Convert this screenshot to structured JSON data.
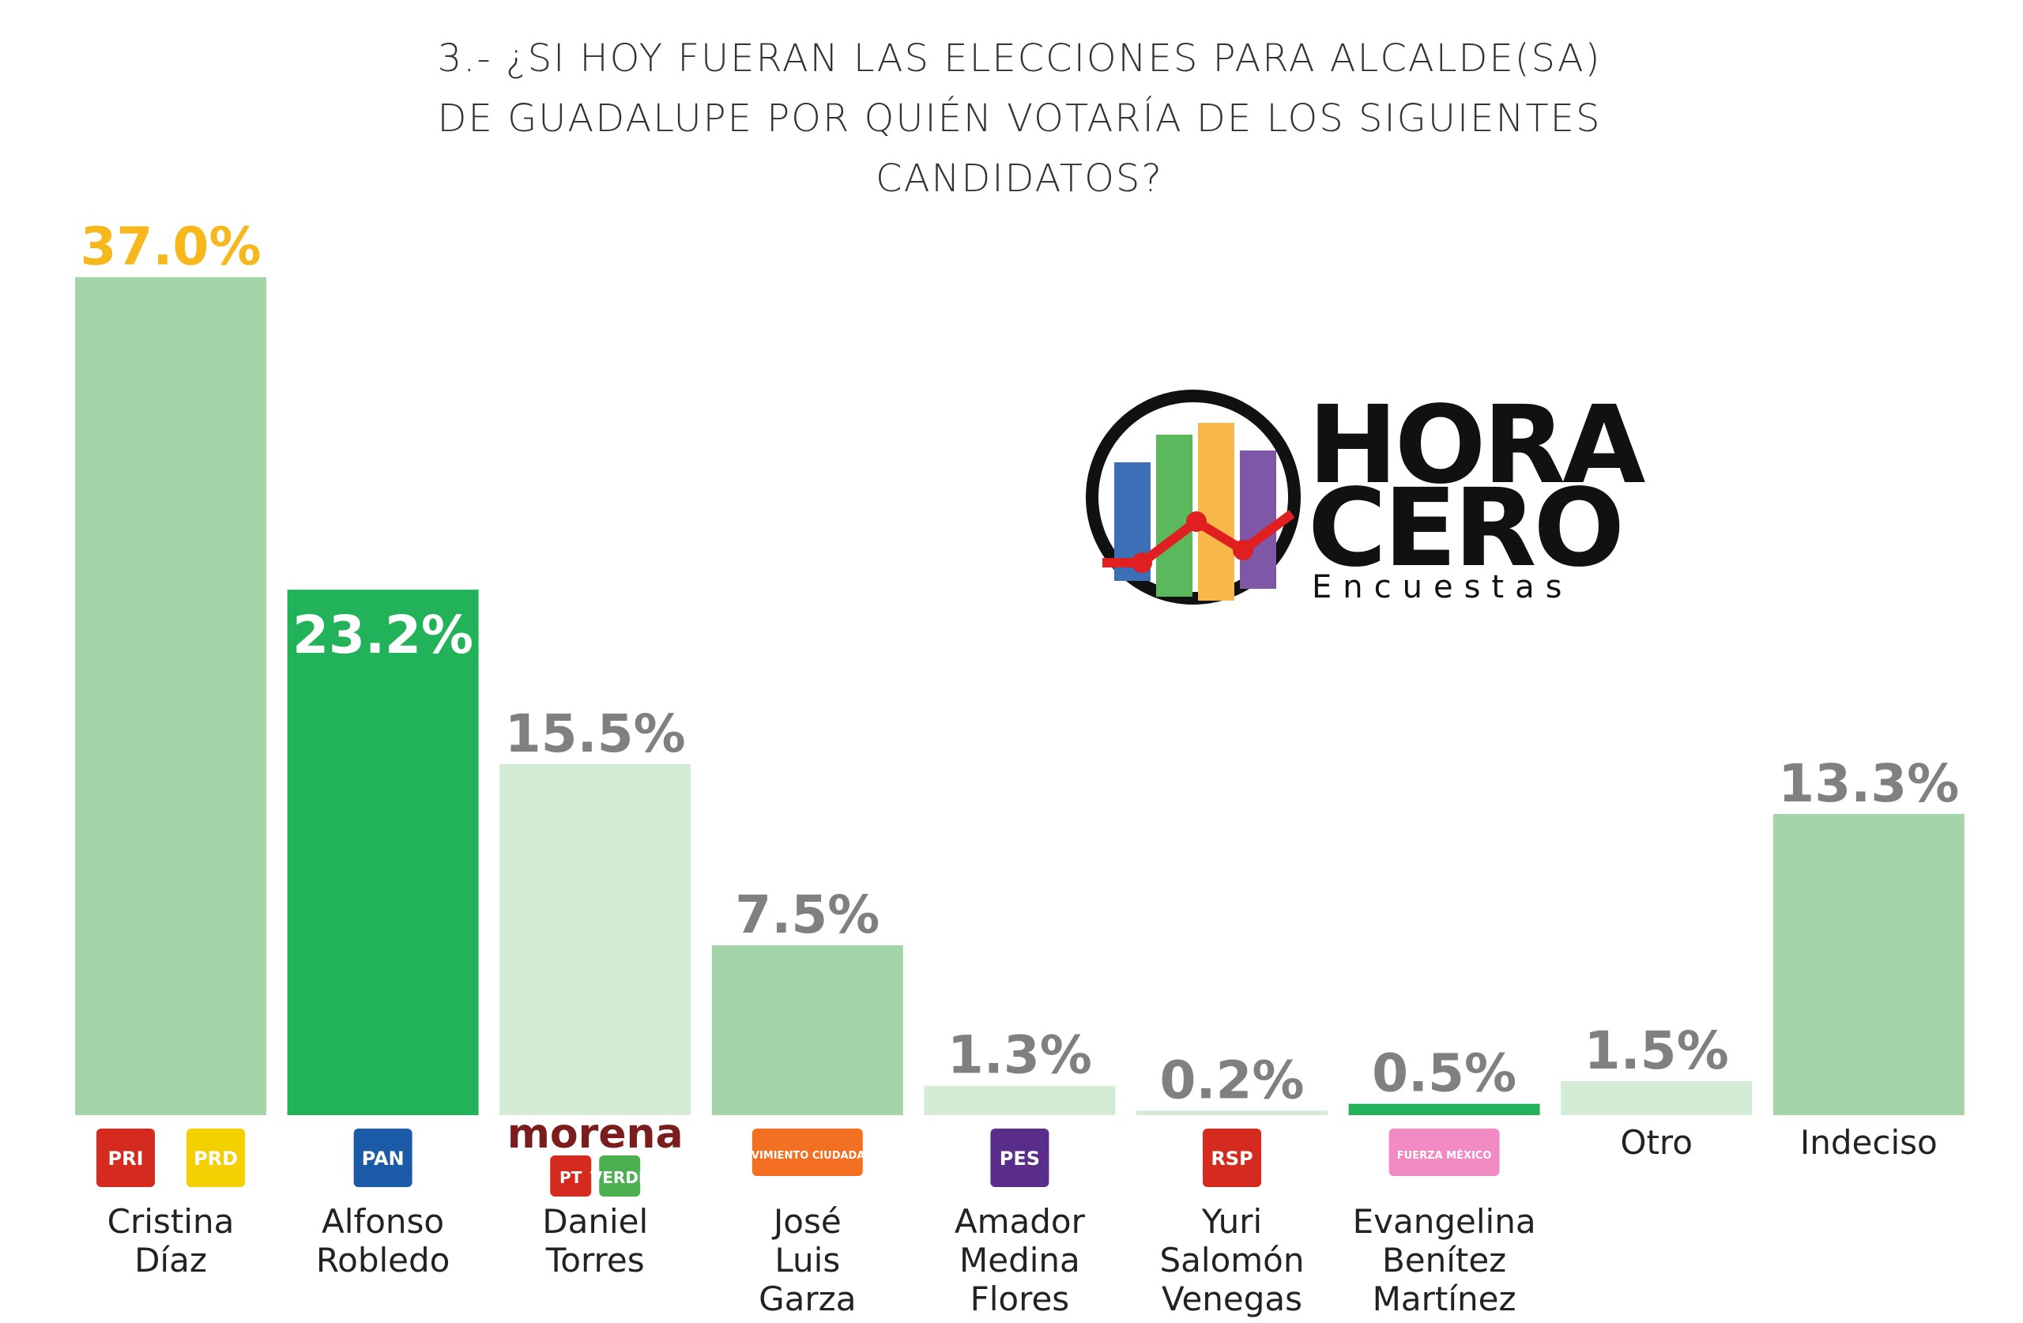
{
  "chart_data": {
    "type": "bar",
    "title": [
      "3.- ¿SI HOY FUERAN LAS ELECCIONES PARA ALCALDE(SA)",
      "DE GUADALUPE POR QUIÉN VOTARÍA DE LOS SIGUIENTES",
      "CANDIDATOS?"
    ],
    "categories": [
      [
        "Cristina",
        "Díaz"
      ],
      [
        "Alfonso",
        "Robledo"
      ],
      [
        "Daniel",
        "Torres"
      ],
      [
        "José",
        "Luis",
        "Garza"
      ],
      [
        "Amador",
        "Medina",
        "Flores"
      ],
      [
        "Yuri",
        "Salomón",
        "Venegas"
      ],
      [
        "Evangelina",
        "Benítez",
        "Martínez"
      ],
      [
        "Otro"
      ],
      [
        "Indeciso"
      ]
    ],
    "parties": [
      [
        "PRI",
        "PRD"
      ],
      [
        "PAN"
      ],
      [
        "morena",
        "PT",
        "VERDE"
      ],
      [
        "MOVIMIENTO CIUDADANO"
      ],
      [
        "PES"
      ],
      [
        "RSP"
      ],
      [
        "FUERZA MÉXICO"
      ],
      [],
      []
    ],
    "values": [
      37.0,
      23.2,
      15.5,
      7.5,
      1.3,
      0.2,
      0.5,
      1.5,
      13.3
    ],
    "value_labels": [
      "37.0%",
      "23.2%",
      "15.5%",
      "7.5%",
      "1.3%",
      "0.2%",
      "0.5%",
      "1.5%",
      "13.3%"
    ],
    "colors": [
      "#a3d5a9",
      "#21b25a",
      "#d4ebd6",
      "#a3d5a9",
      "#d4ebd6",
      "#d4ebd6",
      "#21b25a",
      "#d4ebd6",
      "#a3d5a9"
    ],
    "value_label_colors": [
      "#f6b81c",
      "#ffffff",
      "#808080",
      "#808080",
      "#808080",
      "#808080",
      "#808080",
      "#808080",
      "#808080"
    ],
    "value_label_inside": [
      false,
      true,
      false,
      false,
      false,
      false,
      false,
      false,
      false
    ]
  },
  "logo": {
    "line1": "HORA",
    "line2": "CERO",
    "line3": "Encuestas"
  }
}
